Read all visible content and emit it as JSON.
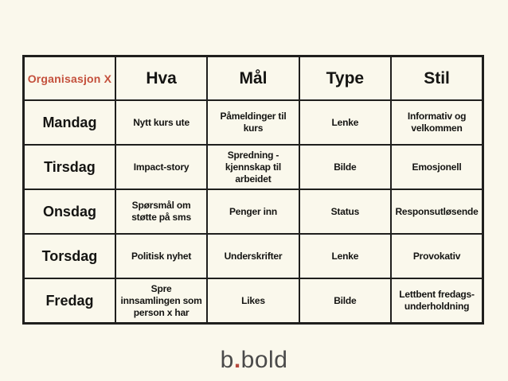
{
  "colors": {
    "background": "#FAF8EC",
    "table_border": "#1F1F1D",
    "accent_red": "#C4503C",
    "logo_gray": "#4A4A4A",
    "logo_dot_red": "#B6483D"
  },
  "table": {
    "headers": [
      "Organisasjon X",
      "Hva",
      "Mål",
      "Type",
      "Stil"
    ],
    "rows": [
      {
        "day": "Mandag",
        "cells": [
          "Nytt kurs ute",
          "Påmeldinger til\nkurs",
          "Lenke",
          "Informativ og\nvelkommen"
        ]
      },
      {
        "day": "Tirsdag",
        "cells": [
          "Impact-story",
          "Spredning -\nkjennskap til\narbeidet",
          "Bilde",
          "Emosjonell"
        ]
      },
      {
        "day": "Onsdag",
        "cells": [
          "Spørsmål om\nstøtte på sms",
          "Penger inn",
          "Status",
          "Responsutløsende"
        ]
      },
      {
        "day": "Torsdag",
        "cells": [
          "Politisk nyhet",
          "Underskrifter",
          "Lenke",
          "Provokativ"
        ]
      },
      {
        "day": "Fredag",
        "cells": [
          "Spre\ninnsamlingen som\nperson x har",
          "Likes",
          "Bilde",
          "Lettbent fredags-\nunderholdning"
        ]
      }
    ]
  },
  "logo": {
    "first": "b",
    "dot": ".",
    "second": "bold"
  }
}
